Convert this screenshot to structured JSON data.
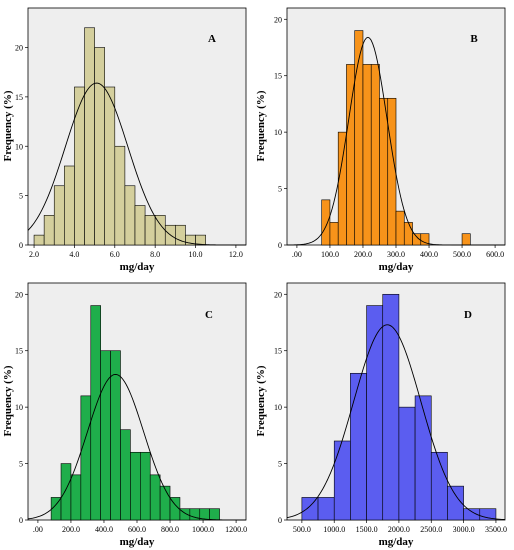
{
  "chart_data": [
    {
      "type": "bar",
      "panel_label": "A",
      "bar_color": "#d4cf9d",
      "xlabel": "mg/day",
      "ylabel": "Frequency (%)",
      "xlim": [
        1.7,
        12.5
      ],
      "ylim": [
        0,
        24
      ],
      "xticks": [
        2.0,
        4.0,
        6.0,
        8.0,
        10.0,
        12.0
      ],
      "xtick_labels": [
        "2.0",
        "4.0",
        "6.0",
        "8.0",
        "10.0",
        "12.0"
      ],
      "yticks": [
        0,
        5,
        10,
        15,
        20
      ],
      "bins": [
        [
          2.0,
          2.5
        ],
        [
          2.5,
          3.0
        ],
        [
          3.0,
          3.5
        ],
        [
          3.5,
          4.0
        ],
        [
          4.0,
          4.5
        ],
        [
          4.5,
          5.0
        ],
        [
          5.0,
          5.5
        ],
        [
          5.5,
          6.0
        ],
        [
          6.0,
          6.5
        ],
        [
          6.5,
          7.0
        ],
        [
          7.0,
          7.5
        ],
        [
          7.5,
          8.0
        ],
        [
          8.0,
          8.5
        ],
        [
          8.5,
          9.0
        ],
        [
          9.0,
          9.5
        ],
        [
          9.5,
          10.0
        ],
        [
          10.0,
          10.5
        ]
      ],
      "values": [
        1,
        3,
        6,
        8,
        16,
        22,
        20,
        16,
        10,
        6,
        4,
        3,
        3,
        2,
        2,
        1,
        1
      ],
      "normal_curve": {
        "mean": 5.1,
        "sd": 1.55,
        "peak": 16.4
      }
    },
    {
      "type": "bar",
      "panel_label": "B",
      "bar_color": "#f7931a",
      "xlabel": "mg/day",
      "ylabel": "Frequency (%)",
      "xlim": [
        -30,
        630
      ],
      "ylim": [
        0,
        21
      ],
      "xticks": [
        0,
        100,
        200,
        300,
        400,
        500,
        600
      ],
      "xtick_labels": [
        ".00",
        "100.0",
        "200.0",
        "300.0",
        "400.0",
        "500.0",
        "600.0"
      ],
      "yticks": [
        0,
        5,
        10,
        15,
        20
      ],
      "bins": [
        [
          75,
          100
        ],
        [
          100,
          125
        ],
        [
          125,
          150
        ],
        [
          150,
          175
        ],
        [
          175,
          200
        ],
        [
          200,
          225
        ],
        [
          225,
          250
        ],
        [
          250,
          275
        ],
        [
          275,
          300
        ],
        [
          300,
          325
        ],
        [
          325,
          350
        ],
        [
          350,
          375
        ],
        [
          375,
          400
        ],
        [
          500,
          525
        ]
      ],
      "values": [
        4,
        2,
        10,
        16,
        19,
        16,
        16,
        13,
        13,
        3,
        2,
        1,
        1,
        1
      ],
      "normal_curve": {
        "mean": 215,
        "sd": 58,
        "peak": 18.4
      }
    },
    {
      "type": "bar",
      "panel_label": "C",
      "bar_color": "#1fae4b",
      "xlabel": "mg/day",
      "ylabel": "Frequency (%)",
      "xlim": [
        -60,
        1260
      ],
      "ylim": [
        0,
        21
      ],
      "xticks": [
        0,
        200,
        400,
        600,
        800,
        1000,
        1200
      ],
      "xtick_labels": [
        ".00",
        "200.0",
        "400.0",
        "600.0",
        "800.0",
        "1000.0",
        "1200.0"
      ],
      "yticks": [
        0,
        5,
        10,
        15,
        20
      ],
      "bins": [
        [
          80,
          140
        ],
        [
          140,
          200
        ],
        [
          200,
          260
        ],
        [
          260,
          320
        ],
        [
          320,
          380
        ],
        [
          380,
          440
        ],
        [
          440,
          500
        ],
        [
          500,
          560
        ],
        [
          560,
          620
        ],
        [
          620,
          680
        ],
        [
          680,
          740
        ],
        [
          740,
          800
        ],
        [
          800,
          860
        ],
        [
          860,
          920
        ],
        [
          920,
          980
        ],
        [
          980,
          1040
        ],
        [
          1040,
          1100
        ]
      ],
      "values": [
        2,
        5,
        4,
        11,
        19,
        15,
        15,
        8,
        6,
        6,
        4,
        3,
        2,
        1,
        1,
        1,
        1
      ],
      "normal_curve": {
        "mean": 470,
        "sd": 170,
        "peak": 12.9
      }
    },
    {
      "type": "bar",
      "panel_label": "D",
      "bar_color": "#5b5df0",
      "xlabel": "mg/day",
      "ylabel": "Frequency (%)",
      "xlim": [
        270,
        3640
      ],
      "ylim": [
        0,
        21
      ],
      "xticks": [
        500,
        1000,
        1500,
        2000,
        2500,
        3000,
        3500
      ],
      "xtick_labels": [
        "500.0",
        "1000.0",
        "1500.0",
        "2000.0",
        "2500.0",
        "3000.0",
        "3500.0"
      ],
      "yticks": [
        0,
        5,
        10,
        15,
        20
      ],
      "bins": [
        [
          500,
          750
        ],
        [
          750,
          1000
        ],
        [
          1000,
          1250
        ],
        [
          1250,
          1500
        ],
        [
          1500,
          1750
        ],
        [
          1750,
          2000
        ],
        [
          2000,
          2250
        ],
        [
          2250,
          2500
        ],
        [
          2500,
          2750
        ],
        [
          2750,
          3000
        ],
        [
          3000,
          3250
        ],
        [
          3250,
          3500
        ]
      ],
      "values": [
        2,
        2,
        7,
        13,
        19,
        20,
        10,
        11,
        6,
        3,
        1,
        1
      ],
      "normal_curve": {
        "mean": 1820,
        "sd": 520,
        "peak": 17.3
      }
    }
  ]
}
